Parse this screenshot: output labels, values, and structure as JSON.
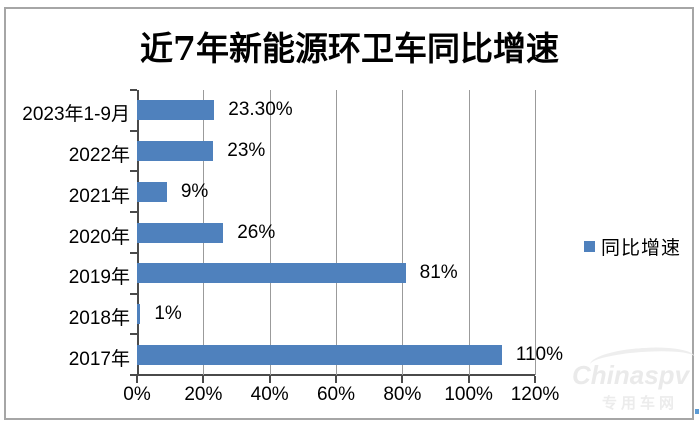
{
  "chart_data": {
    "type": "bar",
    "orientation": "horizontal",
    "title": "近7年新能源环卫车同比增速",
    "categories": [
      "2023年1-9月",
      "2022年",
      "2021年",
      "2020年",
      "2019年",
      "2018年",
      "2017年"
    ],
    "values": [
      23.3,
      23,
      9,
      26,
      81,
      1,
      110
    ],
    "value_labels": [
      "23.30%",
      "23%",
      "9%",
      "26%",
      "81%",
      "1%",
      "110%"
    ],
    "x_tick_values": [
      0,
      20,
      40,
      60,
      80,
      100,
      120
    ],
    "x_tick_labels": [
      "0%",
      "20%",
      "40%",
      "60%",
      "80%",
      "100%",
      "120%"
    ],
    "xlim": [
      0,
      120
    ],
    "grid": true,
    "legend_position": "right",
    "legend": {
      "label": "同比增速",
      "color": "#4F81BD"
    },
    "bar_color": "#4F81BD"
  },
  "watermark": {
    "text": "Chinaspv",
    "subtext": "专用车网"
  }
}
